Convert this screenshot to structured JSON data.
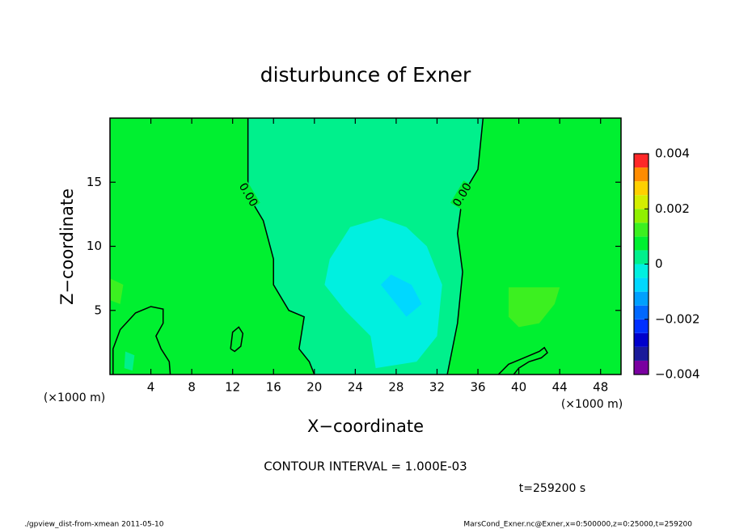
{
  "chart_data": {
    "type": "contour",
    "title": "disturbunce of Exner",
    "x_label": "X−coordinate",
    "y_label": "Z−coordinate",
    "x_unit": "(×1000 m)",
    "y_unit": "(×1000 m)",
    "xlim": [
      0,
      50
    ],
    "ylim": [
      0,
      20
    ],
    "xticks": [
      4,
      8,
      12,
      16,
      20,
      24,
      28,
      32,
      36,
      40,
      44,
      48
    ],
    "yticks": [
      5,
      10,
      15
    ],
    "colorbar": {
      "levels": [
        -0.004,
        -0.0035,
        -0.003,
        -0.0025,
        -0.002,
        -0.0015,
        -0.001,
        -0.0005,
        0,
        0.0005,
        0.001,
        0.0015,
        0.002,
        0.0025,
        0.003,
        0.0035,
        0.004
      ],
      "colors": [
        "#7a00a0",
        "#1a1a9a",
        "#0000cc",
        "#0030ff",
        "#0068ff",
        "#00a0ff",
        "#00d8ff",
        "#00f0e0",
        "#00f08c",
        "#00f030",
        "#3cf020",
        "#90f000",
        "#d4ee00",
        "#ffd000",
        "#ff8c00",
        "#ff2828"
      ],
      "ticks": [
        {
          "value": -0.004,
          "label": "−0.004"
        },
        {
          "value": -0.002,
          "label": "−0.002"
        },
        0,
        0.002,
        0.004
      ]
    },
    "background_value": 0.0007,
    "regions": [
      {
        "value": 0.0003,
        "x": [
          13.5,
          13.5,
          15,
          16,
          16,
          17.5,
          19,
          18.5,
          19.5,
          20,
          33,
          34,
          34.5,
          34,
          34.5,
          36,
          36.5
        ],
        "y": [
          20,
          14,
          12,
          9,
          7,
          5,
          4.5,
          2,
          1,
          0,
          0,
          4,
          8,
          11,
          14,
          16,
          20
        ]
      },
      {
        "value": -0.0003,
        "x": [
          26.5,
          29,
          31,
          32.5,
          32,
          30,
          26,
          25.5,
          23,
          21,
          21.5,
          23.5
        ],
        "y": [
          12.2,
          11.5,
          10,
          7,
          3,
          1,
          0.5,
          3,
          5,
          7,
          9,
          11.5
        ]
      },
      {
        "value": -0.0008,
        "x": [
          27.5,
          29.5,
          30.5,
          29,
          27.5,
          26.5
        ],
        "y": [
          7.8,
          7,
          5.5,
          4.5,
          6,
          7
        ]
      },
      {
        "value": 0.0012,
        "x": [
          39,
          44,
          43.5,
          42,
          40,
          39
        ],
        "y": [
          6.8,
          6.8,
          5.5,
          4,
          3.7,
          4.5
        ]
      },
      {
        "value": 0.0012,
        "x": [
          0,
          1.3,
          1,
          0
        ],
        "y": [
          7.5,
          7,
          5.5,
          5.8
        ]
      },
      {
        "value": 0.0003,
        "x": [
          1.5,
          2.4,
          2.2,
          1.4
        ],
        "y": [
          1.8,
          1.5,
          0.3,
          0.5
        ]
      }
    ],
    "contours": [
      {
        "level": 0,
        "label": "0.00",
        "x": [
          13.5,
          13.5,
          15,
          16,
          16,
          17.5,
          19,
          18.5,
          19.5,
          20
        ],
        "y": [
          20,
          14,
          12,
          9,
          7,
          5,
          4.5,
          2,
          1,
          0
        ]
      },
      {
        "level": 0,
        "label": "0.00",
        "x": [
          33,
          34,
          34.5,
          34,
          34.5,
          36,
          36.5
        ],
        "y": [
          0,
          4,
          8,
          11,
          14,
          16,
          20
        ]
      },
      {
        "level": 0,
        "x": [
          0.3,
          0.3,
          1,
          2.5,
          4,
          5.2,
          5.2,
          4.5,
          5,
          5.8,
          5.9
        ],
        "y": [
          0,
          2,
          3.5,
          4.8,
          5.3,
          5.1,
          4,
          3,
          2,
          1,
          0
        ]
      },
      {
        "level": 0,
        "x": [
          11.8,
          12,
          12.6,
          13,
          12.8,
          12.2,
          11.8
        ],
        "y": [
          2,
          3.3,
          3.7,
          3.2,
          2.2,
          1.8,
          2
        ]
      },
      {
        "level": 0,
        "x": [
          38,
          39,
          40.5,
          42,
          42.5,
          42.8,
          42.2,
          41,
          40,
          39.5
        ],
        "y": [
          0,
          0.8,
          1.3,
          1.8,
          2.1,
          1.7,
          1.3,
          1,
          0.5,
          0
        ]
      }
    ],
    "annotation": "CONTOUR INTERVAL = 1.000E-03",
    "time_label": "t=259200 s",
    "footer_left": "./gpview_dist-from-xmean  2011-05-10",
    "footer_right": "MarsCond_Exner.nc@Exner,x=0:500000,z=0:25000,t=259200"
  }
}
